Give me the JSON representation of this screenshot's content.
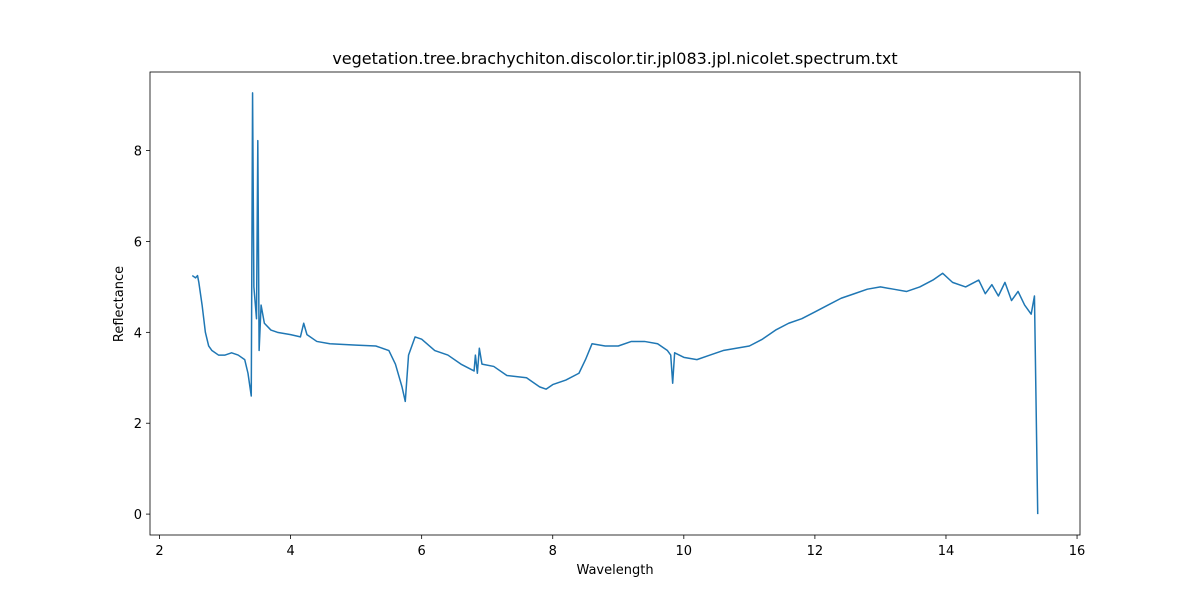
{
  "chart_data": {
    "type": "line",
    "title": "vegetation.tree.brachychiton.discolor.tir.jpl083.jpl.nicolet.spectrum.txt",
    "x_label": "Wavelength",
    "y_label": "Reflectance",
    "x": [
      2.5,
      2.55,
      2.58,
      2.6,
      2.65,
      2.7,
      2.75,
      2.8,
      2.9,
      3.0,
      3.1,
      3.2,
      3.3,
      3.35,
      3.4,
      3.42,
      3.44,
      3.48,
      3.5,
      3.52,
      3.55,
      3.6,
      3.7,
      3.8,
      4.0,
      4.15,
      4.2,
      4.25,
      4.4,
      4.6,
      5.0,
      5.3,
      5.5,
      5.6,
      5.7,
      5.75,
      5.8,
      5.9,
      6.0,
      6.2,
      6.4,
      6.6,
      6.8,
      6.82,
      6.85,
      6.88,
      6.92,
      7.1,
      7.3,
      7.6,
      7.8,
      7.9,
      8.0,
      8.2,
      8.4,
      8.5,
      8.6,
      8.8,
      9.0,
      9.2,
      9.4,
      9.6,
      9.75,
      9.8,
      9.83,
      9.86,
      10.0,
      10.2,
      10.4,
      10.6,
      10.8,
      11.0,
      11.2,
      11.4,
      11.6,
      11.8,
      12.0,
      12.2,
      12.4,
      12.6,
      12.8,
      13.0,
      13.2,
      13.4,
      13.6,
      13.8,
      13.95,
      14.1,
      14.3,
      14.5,
      14.6,
      14.7,
      14.8,
      14.9,
      15.0,
      15.1,
      15.2,
      15.3,
      15.35,
      15.4
    ],
    "series": [
      {
        "color": "#1f77b4",
        "values": [
          5.25,
          5.2,
          5.25,
          5.1,
          4.6,
          4.0,
          3.7,
          3.6,
          3.5,
          3.5,
          3.55,
          3.5,
          3.4,
          3.1,
          2.6,
          9.27,
          5.0,
          4.3,
          8.22,
          3.6,
          4.6,
          4.2,
          4.05,
          4.0,
          3.95,
          3.9,
          4.2,
          3.95,
          3.8,
          3.75,
          3.72,
          3.7,
          3.6,
          3.3,
          2.8,
          2.48,
          3.5,
          3.9,
          3.85,
          3.6,
          3.5,
          3.3,
          3.15,
          3.5,
          3.1,
          3.65,
          3.3,
          3.25,
          3.05,
          3.0,
          2.8,
          2.75,
          2.85,
          2.95,
          3.1,
          3.4,
          3.75,
          3.7,
          3.7,
          3.8,
          3.8,
          3.75,
          3.6,
          3.5,
          2.88,
          3.55,
          3.45,
          3.4,
          3.5,
          3.6,
          3.65,
          3.7,
          3.85,
          4.05,
          4.2,
          4.3,
          4.45,
          4.6,
          4.75,
          4.85,
          4.95,
          5.0,
          4.95,
          4.9,
          5.0,
          5.15,
          5.3,
          5.1,
          5.0,
          5.15,
          4.85,
          5.05,
          4.8,
          5.1,
          4.7,
          4.9,
          4.6,
          4.4,
          4.8,
          0.0
        ]
      }
    ],
    "xlim": [
      1.855,
      16.045
    ],
    "ylim": [
      -0.46,
      9.73
    ],
    "xticks": [
      2,
      4,
      6,
      8,
      10,
      12,
      14,
      16
    ],
    "yticks": [
      0,
      2,
      4,
      6,
      8
    ]
  }
}
